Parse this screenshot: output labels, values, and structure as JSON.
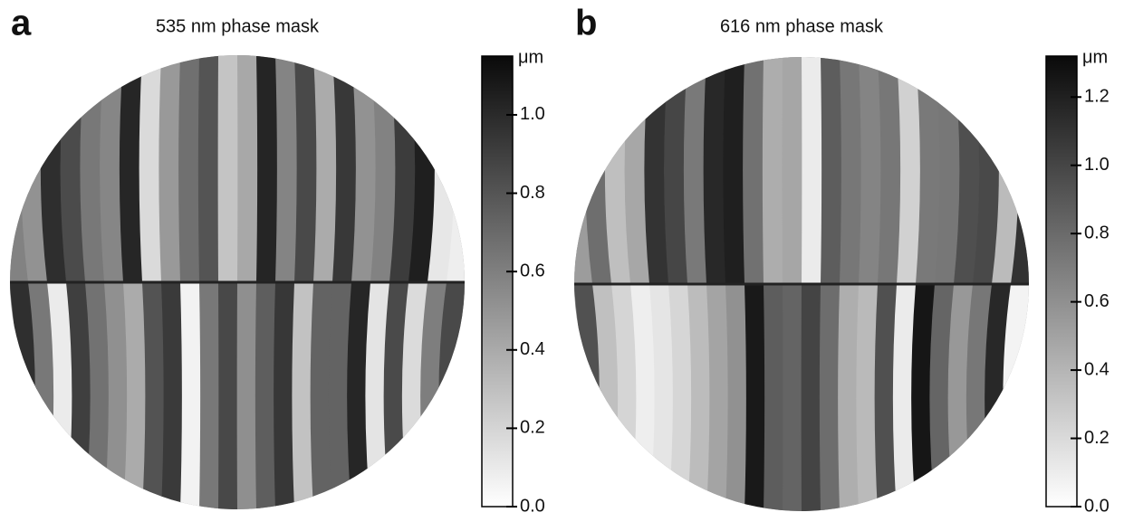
{
  "chart_data": [
    {
      "type": "heatmap",
      "panel_label": "a",
      "title": "535 nm phase mask",
      "colorbar": {
        "unit": "μm",
        "lim": [
          0,
          1.15
        ],
        "ticks": [
          {
            "value": 0,
            "label": "0.0"
          },
          0.2,
          0.4,
          0.6,
          0.8,
          {
            "value": 1,
            "label": "1.0"
          }
        ]
      }
    },
    {
      "type": "heatmap",
      "panel_label": "b",
      "title": "616 nm phase mask",
      "colorbar": {
        "unit": "μm",
        "lim": [
          0,
          1.32
        ],
        "ticks": [
          {
            "value": 0,
            "label": "0.0"
          },
          0.2,
          0.4,
          0.6,
          0.8,
          {
            "value": 1,
            "label": "1.0"
          },
          1.2
        ]
      }
    }
  ]
}
